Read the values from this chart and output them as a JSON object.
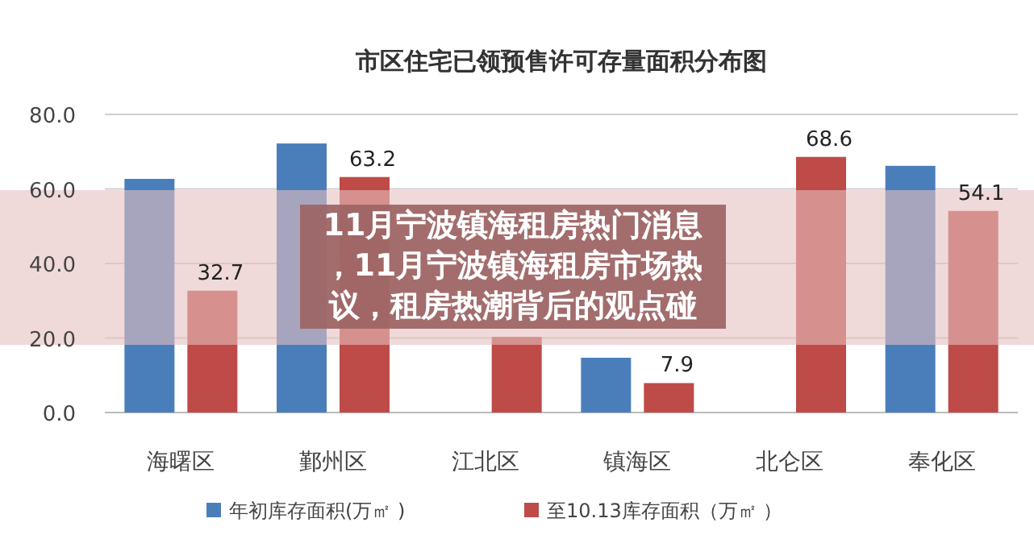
{
  "chart_data": {
    "type": "bar",
    "title": "市区住宅已领预售许可存量面积分布图",
    "categories": [
      "海曙区",
      "鄞州区",
      "江北区",
      "镇海区",
      "北仑区",
      "奉化区"
    ],
    "series": [
      {
        "name": "年初库存面积(万㎡ )",
        "color": "#4a7ebb",
        "values": [
          62.7,
          72.2,
          null,
          14.7,
          null,
          66.2
        ]
      },
      {
        "name": "至10.13库存面积（万㎡ ）",
        "color": "#be4b48",
        "values": [
          32.7,
          63.2,
          20.3,
          7.9,
          68.6,
          54.1
        ],
        "value_labels": [
          "32.7",
          "63.2",
          null,
          "7.9",
          "68.6",
          "54.1"
        ]
      }
    ],
    "ylim": [
      0,
      80
    ],
    "yticks": [
      {
        "value": 0,
        "label": "0.0"
      },
      {
        "value": 20,
        "label": "20.0"
      },
      {
        "value": 40,
        "label": "40.0"
      },
      {
        "value": 60,
        "label": "60.0"
      },
      {
        "value": 80,
        "label": "80.0"
      }
    ],
    "grid": "y",
    "legend": "bottom",
    "annotations": [
      "11月宁波镇海租房热门消息，11月宁波镇海租房市场热议，租房热潮背后的观点碰"
    ]
  }
}
